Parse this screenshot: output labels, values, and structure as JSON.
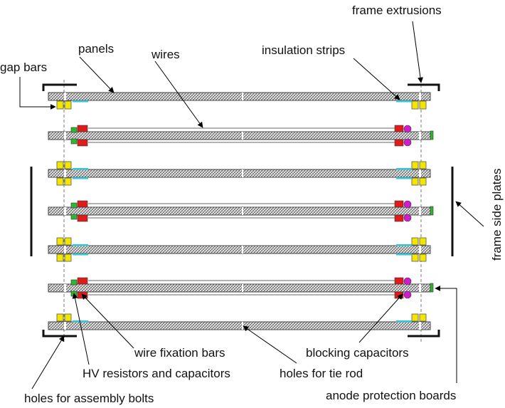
{
  "labels": {
    "frame_extrusions": "frame extrusions",
    "panels": "panels",
    "wires": "wires",
    "insulation_strips": "insulation strips",
    "gap_bars": "gap bars",
    "frame_side_plates": "frame side plates",
    "wire_fixation_bars": "wire fixation bars",
    "blocking_capacitors": "blocking capacitors",
    "hv_resistors": "HV resistors and capacitors",
    "holes_tie_rod": "holes for tie rod",
    "holes_assembly": "holes for assembly bolts",
    "anode_protection": "anode protection boards"
  },
  "colors": {
    "gap_bar": "#f2e600",
    "insulation_strip": "#33c6d6",
    "hv_resistor": "#e11a1a",
    "wire_fixation": "#2fb52f",
    "blocking_capacitor": "#d31ad3",
    "anode_board": "#2fb52f",
    "panel_hatch": "#555555"
  }
}
